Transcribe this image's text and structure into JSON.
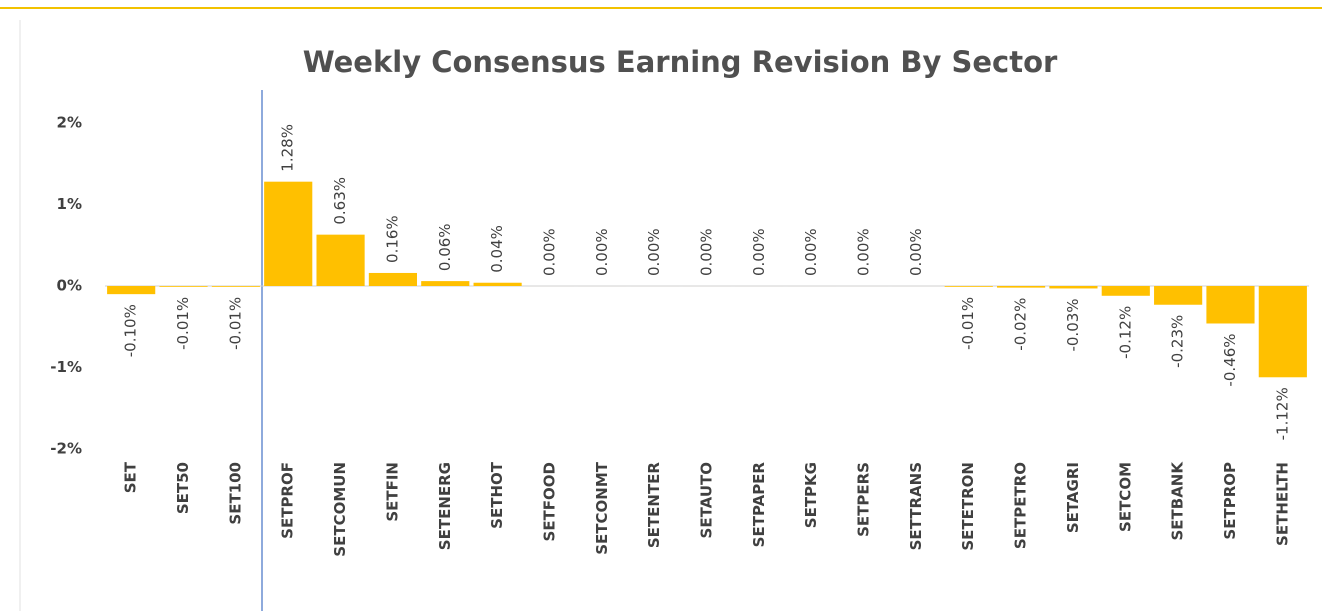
{
  "chart_data": {
    "type": "bar",
    "title": "Weekly Consensus Earning Revision By Sector",
    "categories": [
      "SET",
      "SET50",
      "SET100",
      "SETPROF",
      "SETCOMUN",
      "SETFIN",
      "SETENERG",
      "SETHOT",
      "SETFOOD",
      "SETCONMT",
      "SETENTER",
      "SETAUTO",
      "SETPAPER",
      "SETPKG",
      "SETPERS",
      "SETTRANS",
      "SETETRON",
      "SETPETRO",
      "SETAGRI",
      "SETCOM",
      "SETBANK",
      "SETPROP",
      "SETHELTH"
    ],
    "values": [
      -0.1,
      -0.01,
      -0.01,
      1.28,
      0.63,
      0.16,
      0.06,
      0.04,
      0.0,
      0.0,
      0.0,
      0.0,
      0.0,
      0.0,
      0.0,
      0.0,
      -0.01,
      -0.02,
      -0.03,
      -0.12,
      -0.23,
      -0.46,
      -1.12
    ],
    "value_labels": [
      "-0.10%",
      "-0.01%",
      "-0.01%",
      "1.28%",
      "0.63%",
      "0.16%",
      "0.06%",
      "0.04%",
      "0.00%",
      "0.00%",
      "0.00%",
      "0.00%",
      "0.00%",
      "0.00%",
      "0.00%",
      "0.00%",
      "-0.01%",
      "-0.02%",
      "-0.03%",
      "-0.12%",
      "-0.23%",
      "-0.46%",
      "-1.12%"
    ],
    "color": "#ffc000",
    "ylim": [
      -2,
      2
    ],
    "yticks": [
      {
        "value": 2,
        "label": "2%"
      },
      {
        "value": 1,
        "label": "1%"
      },
      {
        "value": 0,
        "label": "0%"
      },
      {
        "value": -1,
        "label": "-1%"
      },
      {
        "value": -2,
        "label": "-2%"
      }
    ],
    "grid": false
  }
}
